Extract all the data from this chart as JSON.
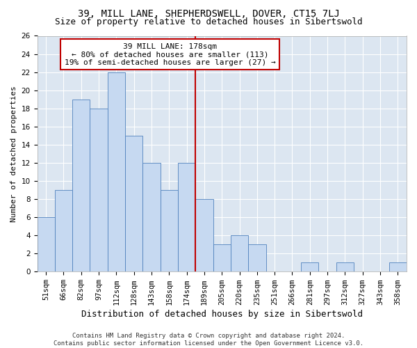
{
  "title": "39, MILL LANE, SHEPHERDSWELL, DOVER, CT15 7LJ",
  "subtitle": "Size of property relative to detached houses in Sibertswold",
  "xlabel": "Distribution of detached houses by size in Sibertswold",
  "ylabel": "Number of detached properties",
  "categories": [
    "51sqm",
    "66sqm",
    "82sqm",
    "97sqm",
    "112sqm",
    "128sqm",
    "143sqm",
    "158sqm",
    "174sqm",
    "189sqm",
    "205sqm",
    "220sqm",
    "235sqm",
    "251sqm",
    "266sqm",
    "281sqm",
    "297sqm",
    "312sqm",
    "327sqm",
    "343sqm",
    "358sqm"
  ],
  "values": [
    6,
    9,
    19,
    18,
    22,
    15,
    12,
    9,
    12,
    8,
    3,
    4,
    3,
    0,
    0,
    1,
    0,
    1,
    0,
    0,
    1
  ],
  "bar_color": "#c6d9f1",
  "bar_edge_color": "#4f81bd",
  "vline_x_index": 8,
  "vline_color": "#c00000",
  "annotation_lines": [
    "39 MILL LANE: 178sqm",
    "← 80% of detached houses are smaller (113)",
    "19% of semi-detached houses are larger (27) →"
  ],
  "annotation_box_color": "#ffffff",
  "annotation_border_color": "#c00000",
  "ylim": [
    0,
    26
  ],
  "yticks": [
    0,
    2,
    4,
    6,
    8,
    10,
    12,
    14,
    16,
    18,
    20,
    22,
    24,
    26
  ],
  "footer_line1": "Contains HM Land Registry data © Crown copyright and database right 2024.",
  "footer_line2": "Contains public sector information licensed under the Open Government Licence v3.0.",
  "background_color": "#dce6f1",
  "title_fontsize": 10,
  "subtitle_fontsize": 9,
  "xlabel_fontsize": 9,
  "ylabel_fontsize": 8,
  "annotation_fontsize": 8,
  "tick_fontsize": 7.5,
  "footer_fontsize": 6.5
}
